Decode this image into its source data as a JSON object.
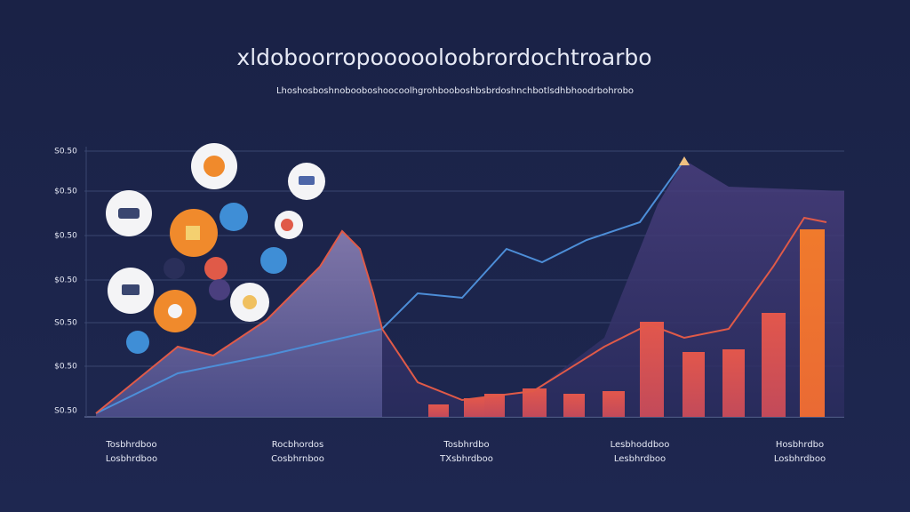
{
  "header": {
    "title": "xldoboorropoooooloobrordochtroarbo",
    "subtitle": "Lhoshosboshnobooboshoocoolhgrohbooboshbsbrdoshnchbotlsdhbhoodrbohrobo"
  },
  "y_axis": {
    "labels": [
      "S0.50",
      "$0.50",
      "$0.50",
      "$0.50",
      "S0.50",
      "$0.50",
      "S0.50"
    ]
  },
  "x_axis": {
    "labels": [
      {
        "line1": "Tosbhrdboo",
        "line2": "Losbhrdboo"
      },
      {
        "line1": "Rocbhordos",
        "line2": "Cosbhrnboo"
      },
      {
        "line1": "Tosbhrdbo",
        "line2": "TXsbhrdboo"
      },
      {
        "line1": "Lesbhoddboo",
        "line2": "Lesbhrdboo"
      },
      {
        "line1": "Hosbhrdbo",
        "line2": "Losbhrdboo"
      }
    ]
  }
}
